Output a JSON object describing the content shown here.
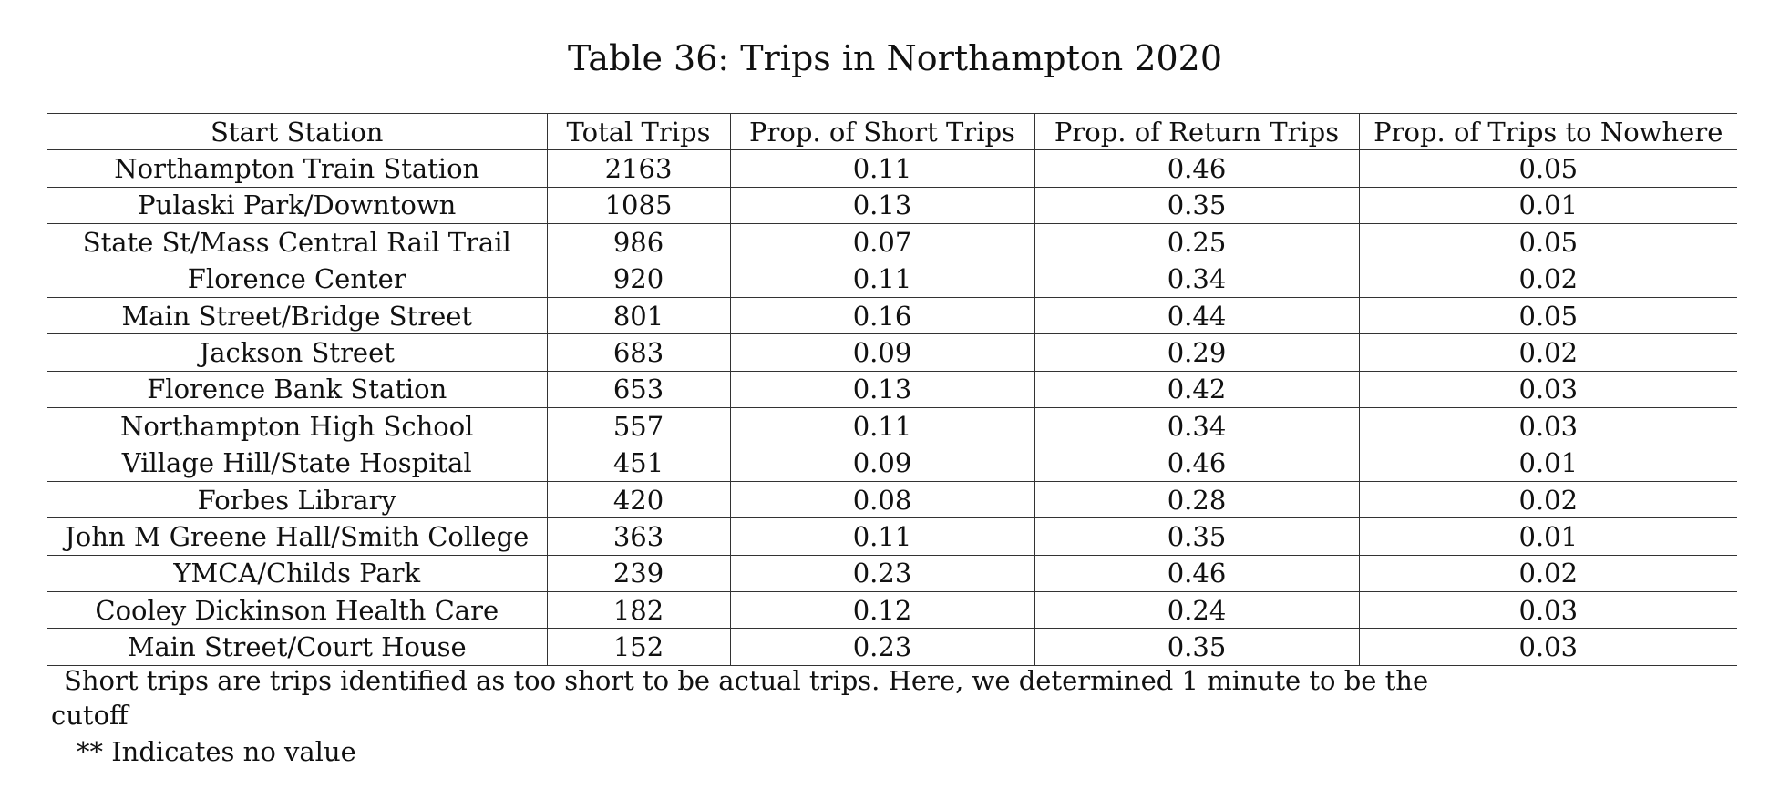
{
  "caption": "Table 36: Trips in Northampton 2020",
  "table": {
    "headers": [
      "Start Station",
      "Total Trips",
      "Prop. of Short Trips",
      "Prop. of Return Trips",
      "Prop. of Trips to Nowhere"
    ],
    "rows": [
      [
        "Northampton Train Station",
        "2163",
        "0.11",
        "0.46",
        "0.05"
      ],
      [
        "Pulaski Park/Downtown",
        "1085",
        "0.13",
        "0.35",
        "0.01"
      ],
      [
        "State St/Mass Central Rail Trail",
        "986",
        "0.07",
        "0.25",
        "0.05"
      ],
      [
        "Florence Center",
        "920",
        "0.11",
        "0.34",
        "0.02"
      ],
      [
        "Main Street/Bridge Street",
        "801",
        "0.16",
        "0.44",
        "0.05"
      ],
      [
        "Jackson Street",
        "683",
        "0.09",
        "0.29",
        "0.02"
      ],
      [
        "Florence Bank Station",
        "653",
        "0.13",
        "0.42",
        "0.03"
      ],
      [
        "Northampton High School",
        "557",
        "0.11",
        "0.34",
        "0.03"
      ],
      [
        "Village Hill/State Hospital",
        "451",
        "0.09",
        "0.46",
        "0.01"
      ],
      [
        "Forbes Library",
        "420",
        "0.08",
        "0.28",
        "0.02"
      ],
      [
        "John M Greene Hall/Smith College",
        "363",
        "0.11",
        "0.35",
        "0.01"
      ],
      [
        "YMCA/Childs Park",
        "239",
        "0.23",
        "0.46",
        "0.02"
      ],
      [
        "Cooley Dickinson Health Care",
        "182",
        "0.12",
        "0.24",
        "0.03"
      ],
      [
        "Main Street/Court House",
        "152",
        "0.23",
        "0.35",
        "0.03"
      ]
    ]
  },
  "notes": {
    "short_trips": "Short trips are trips identified as too short to be actual trips. Here, we determined 1 minute to be the cutoff",
    "no_value": "** Indicates no value"
  }
}
